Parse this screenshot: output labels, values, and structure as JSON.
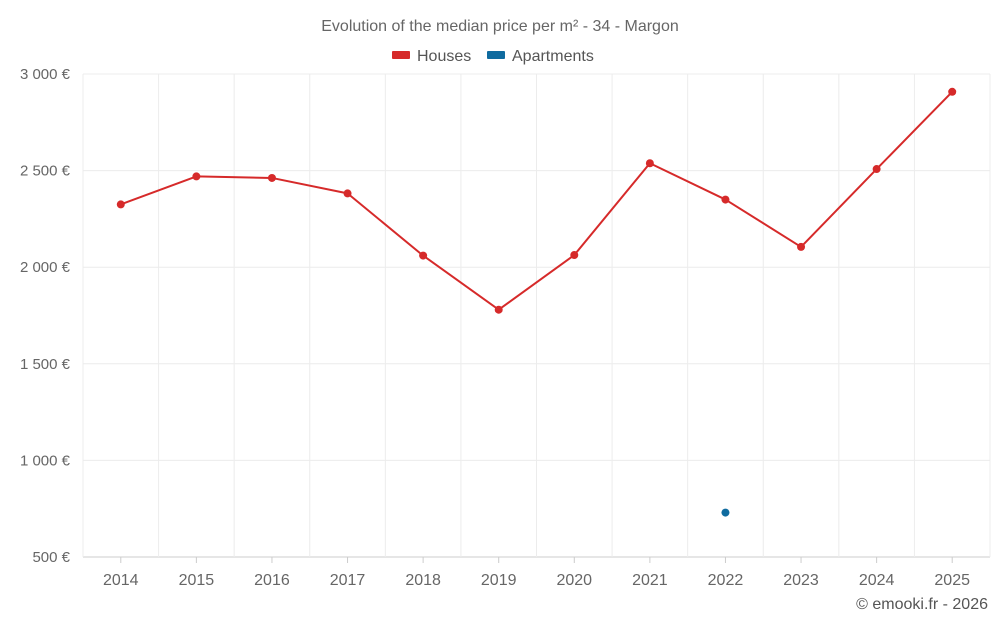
{
  "chart_data": {
    "type": "line",
    "title": "Evolution of the median price per m² - 34 - Margon",
    "categories": [
      "2014",
      "2015",
      "2016",
      "2017",
      "2018",
      "2019",
      "2020",
      "2021",
      "2022",
      "2023",
      "2024",
      "2025"
    ],
    "series": [
      {
        "name": "Houses",
        "color": "#d62a2a",
        "values": [
          2325,
          2470,
          2462,
          2382,
          2060,
          1780,
          2063,
          2538,
          2350,
          2105,
          2508,
          2908
        ]
      },
      {
        "name": "Apartments",
        "color": "#0f6b9f",
        "values": [
          null,
          null,
          null,
          null,
          null,
          null,
          null,
          null,
          730,
          null,
          null,
          null
        ]
      }
    ],
    "ylim": [
      500,
      3000
    ],
    "yticks": [
      500,
      1000,
      1500,
      2000,
      2500,
      3000
    ],
    "ytick_labels": [
      "500 €",
      "1 000 €",
      "1 500 €",
      "2 000 €",
      "2 500 €",
      "3 000 €"
    ],
    "xlabel": "",
    "ylabel": "",
    "grid": true,
    "legend": "top-center"
  },
  "credit": "© emooki.fr - 2026"
}
